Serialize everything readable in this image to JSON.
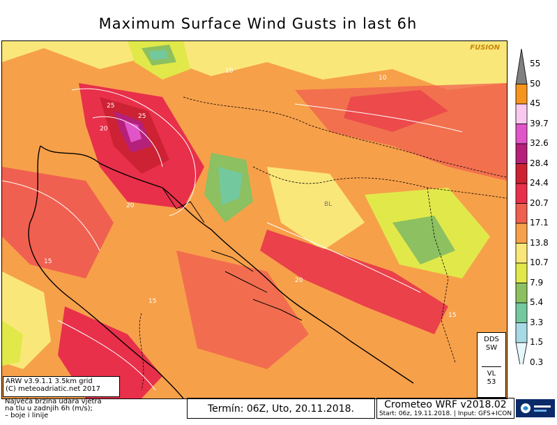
{
  "title": "Maximum Surface Wind Gusts in last 6h",
  "watermark": "FUSION",
  "legend": {
    "levels": [
      "55",
      "50",
      "45",
      "39.7",
      "32.6",
      "28.4",
      "24.4",
      "20.7",
      "17.1",
      "13.8",
      "10.7",
      "7.9",
      "5.4",
      "3.3",
      "1.5",
      "0.3"
    ],
    "colors": [
      "#808080",
      "#f7941d",
      "#f9c9f0",
      "#e055c8",
      "#b5207a",
      "#cc2233",
      "#e8304a",
      "#f06050",
      "#f7a04a",
      "#fae77a",
      "#e1e94a",
      "#8cc060",
      "#74c89e",
      "#a8dae6",
      "#e6f7fb"
    ]
  },
  "info": {
    "model_line1": "ARW v3.9.1.1 3.5km grid",
    "model_line2": "(C) meteoadriatic.net 2017",
    "desc_line1": "Najveća brzina udara vjetra",
    "desc_line2": "na tlu u zadnjih 6h (m/s);",
    "desc_line3": "– boje i linije"
  },
  "termin": "Termín: 06Z, Uto, 20.11.2018.",
  "crometeo": {
    "title": "Crometeo WRF v2018.02",
    "subtitle": "Start: 06z, 19.11.2018. | Input: GFS+ICON"
  },
  "dds": {
    "line1": "DDS",
    "line2": "SW",
    "line3": "VL",
    "line4": "53"
  },
  "city_labels": [
    "BL"
  ],
  "contour_labels": [
    "20",
    "25",
    "15",
    "10",
    "20",
    "15",
    "20",
    "10",
    "25",
    "15"
  ]
}
